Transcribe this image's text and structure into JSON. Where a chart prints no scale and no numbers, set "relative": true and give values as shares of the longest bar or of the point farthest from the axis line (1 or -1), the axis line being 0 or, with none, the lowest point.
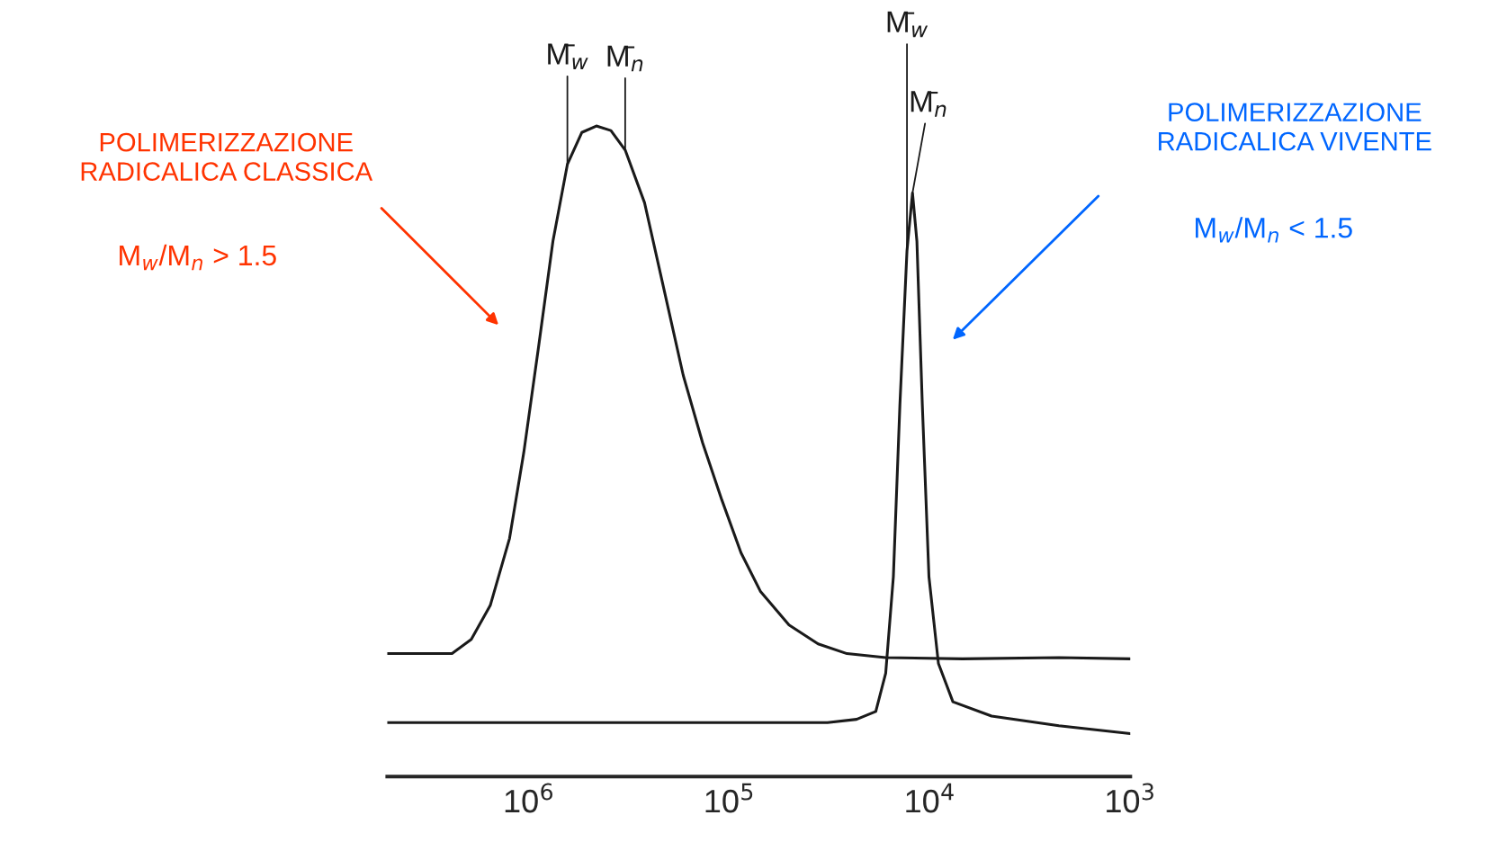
{
  "chart_data": {
    "type": "line",
    "relative": true,
    "log": "x",
    "grid": false,
    "marker": "none",
    "line_style": "solid",
    "tick_labels": "x",
    "xlim": [
      5090000,
      1000
    ],
    "xticks": [
      {
        "value": 1000000,
        "label": "10$^{6}$"
      },
      {
        "value": 100000,
        "label": "10$^{5}$"
      },
      {
        "value": 10000,
        "label": "10$^{4}$"
      },
      {
        "value": 1000,
        "label": "10$^{3}$"
      }
    ],
    "series": [
      {
        "color": "#1a1a1a",
        "x": [
          5090000,
          2420000,
          1940000,
          1560000,
          1250000,
          1060000,
          895000,
          759000,
          643000,
          545000,
          461000,
          390000,
          331000,
          265000,
          212000,
          170000,
          136000,
          109000,
          87500,
          70100,
          50400,
          36100,
          25900,
          16600,
          6870,
          2270,
          1000
        ],
        "values": [
          0.189,
          0.189,
          0.211,
          0.263,
          0.366,
          0.499,
          0.661,
          0.823,
          0.941,
          0.99,
          1,
          0.993,
          0.963,
          0.882,
          0.749,
          0.617,
          0.513,
          0.425,
          0.344,
          0.285,
          0.233,
          0.204,
          0.189,
          0.183,
          0.181,
          0.183,
          0.181
        ]
      },
      {
        "color": "#1a1a1a",
        "x": [
          5090000,
          32400,
          23200,
          18600,
          16600,
          15200,
          14100,
          13000,
          12200,
          11600,
          10900,
          10100,
          9060,
          7670,
          4920,
          2270,
          1000
        ],
        "values": [
          0.083,
          0.083,
          0.088,
          0.1,
          0.159,
          0.307,
          0.572,
          0.808,
          0.897,
          0.823,
          0.572,
          0.307,
          0.174,
          0.115,
          0.093,
          0.078,
          0.066
        ]
      }
    ],
    "annotations": [
      "POLIMERIZZAZIONE\nRADICALICA CLASSICA",
      "M$_{w}$/M$_{n}$ > 1.5",
      "POLIMERIZZAZIONE\nRADICALICA VIVENTE",
      "M$_{w}$/M$_{n}$ < 1.5",
      {
        "text": "M̄$_{w}$",
        "x": 643000,
        "y": 0.941
      },
      {
        "text": "M̄$_{n}$",
        "x": 331000,
        "y": 0.963
      },
      {
        "text": "M̄$_{w}$",
        "x": 13000,
        "y": 0.808
      },
      {
        "text": "M̄$_{n}$",
        "x": 12200,
        "y": 0.897
      }
    ]
  }
}
